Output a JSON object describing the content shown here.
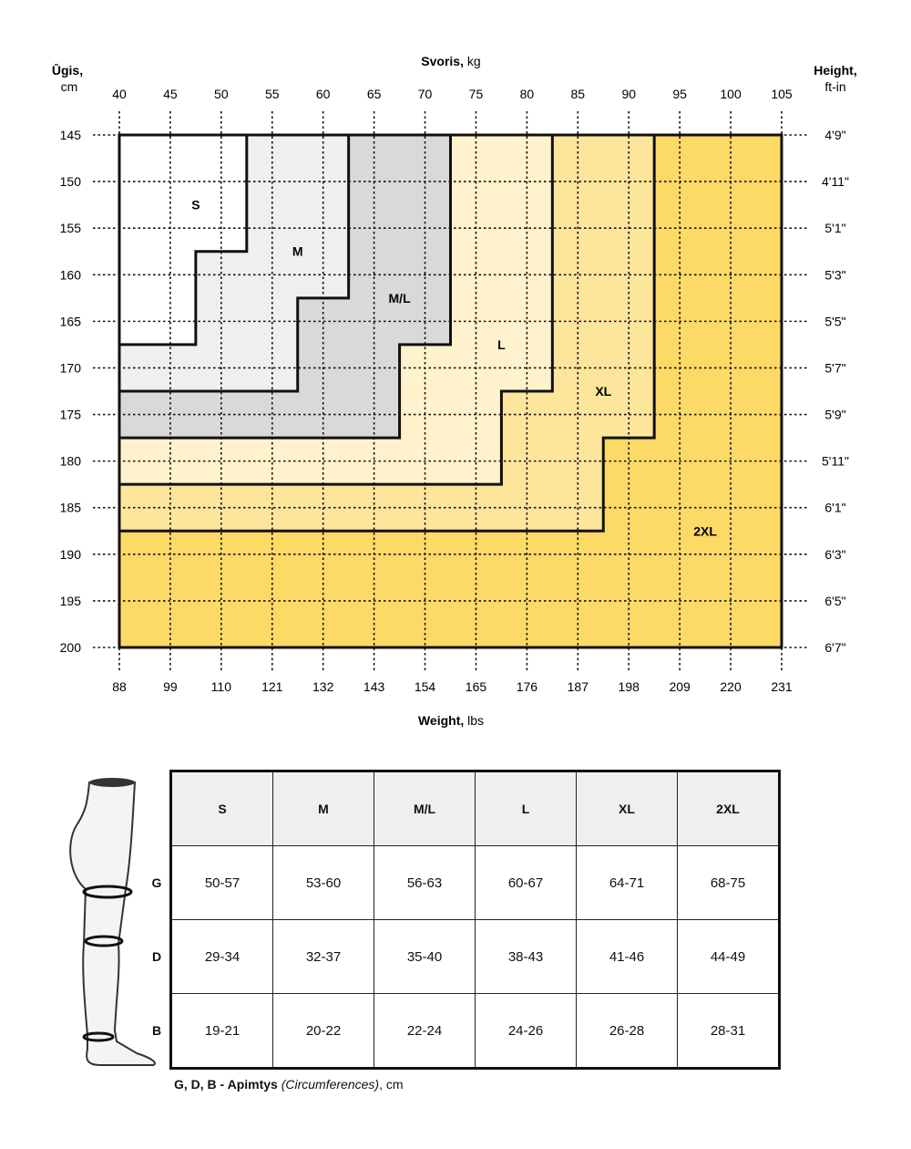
{
  "chart_data": {
    "type": "heatmap",
    "title": "",
    "top_axis": {
      "label_bold": "Svoris,",
      "label_unit": " kg",
      "ticks": [
        40,
        45,
        50,
        55,
        60,
        65,
        70,
        75,
        80,
        85,
        90,
        95,
        100,
        105
      ]
    },
    "bottom_axis": {
      "label_bold": "Weight,",
      "label_unit": " lbs",
      "ticks": [
        "88",
        "99",
        "110",
        "121",
        "132",
        "143",
        "154",
        "165",
        "176",
        "187",
        "198",
        "209",
        "220",
        "231"
      ]
    },
    "left_axis": {
      "label_line1": "Ūgis,",
      "label_line2": "cm",
      "ticks": [
        145,
        150,
        155,
        160,
        165,
        170,
        175,
        180,
        185,
        190,
        195,
        200
      ]
    },
    "right_axis": {
      "label_line1": "Height,",
      "label_line2": "ft-in",
      "ticks": [
        "4'9\"",
        "4'11\"",
        "5'1\"",
        "5'3\"",
        "5'5\"",
        "5'7\"",
        "5'9\"",
        "5'11\"",
        "6'1\"",
        "6'3\"",
        "6'5\"",
        "6'7\""
      ]
    },
    "xlim": [
      40,
      105
    ],
    "ylim": [
      145,
      200
    ],
    "grid": true,
    "sizes": [
      {
        "name": "S",
        "color": "#ffffff",
        "max_weight_top": 52.5,
        "step_height": 157.5,
        "max_weight_bottom": 47.5,
        "max_height": 167.5,
        "label_at": [
          47.5,
          152.5
        ]
      },
      {
        "name": "M",
        "color": "#efefef",
        "max_weight_top": 62.5,
        "step_height": 162.5,
        "max_weight_bottom": 57.5,
        "max_height": 172.5,
        "label_at": [
          57.5,
          157.5
        ]
      },
      {
        "name": "M/L",
        "color": "#d9d9d9",
        "max_weight_top": 72.5,
        "step_height": 167.5,
        "max_weight_bottom": 67.5,
        "max_height": 177.5,
        "label_at": [
          67.5,
          162.5
        ]
      },
      {
        "name": "L",
        "color": "#fff2cc",
        "max_weight_top": 82.5,
        "step_height": 172.5,
        "max_weight_bottom": 77.5,
        "max_height": 182.5,
        "label_at": [
          77.5,
          167.5
        ]
      },
      {
        "name": "XL",
        "color": "#fde59c",
        "max_weight_top": 92.5,
        "step_height": 177.5,
        "max_weight_bottom": 87.5,
        "max_height": 187.5,
        "label_at": [
          87.5,
          172.5
        ]
      },
      {
        "name": "2XL",
        "color": "#fdd966",
        "max_weight_top": 105,
        "step_height": 200,
        "max_weight_bottom": 105,
        "max_height": 200,
        "label_at": [
          97.5,
          187.5
        ]
      }
    ]
  },
  "table": {
    "headers": [
      "S",
      "M",
      "M/L",
      "L",
      "XL",
      "2XL"
    ],
    "rows": [
      {
        "label": "G",
        "values": [
          "50-57",
          "53-60",
          "56-63",
          "60-67",
          "64-71",
          "68-75"
        ]
      },
      {
        "label": "D",
        "values": [
          "29-34",
          "32-37",
          "35-40",
          "38-43",
          "41-46",
          "44-49"
        ]
      },
      {
        "label": "B",
        "values": [
          "19-21",
          "20-22",
          "22-24",
          "24-26",
          "26-28",
          "28-31"
        ]
      }
    ],
    "footnote_bold": "G, D, B - Apimtys ",
    "footnote_italic": "(Circumferences)",
    "footnote_rest": ", cm"
  }
}
